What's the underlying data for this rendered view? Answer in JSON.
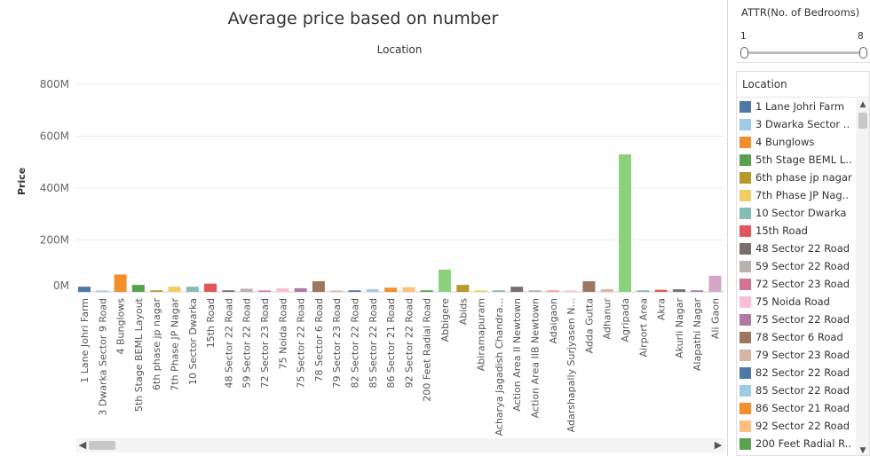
{
  "chart_data": {
    "type": "bar",
    "title": "Average price based on number",
    "column_header": "Location",
    "xlabel": "",
    "ylabel": "Price",
    "ylim": [
      0,
      900000000
    ],
    "y_ticks": [
      {
        "value": 0,
        "label": "0M"
      },
      {
        "value": 200000000,
        "label": "200M"
      },
      {
        "value": 400000000,
        "label": "400M"
      },
      {
        "value": 600000000,
        "label": "600M"
      },
      {
        "value": 800000000,
        "label": "800M"
      }
    ],
    "grid": true,
    "categories": [
      "1 Lane Johri Farm",
      "3 Dwarka Sector 9 Road",
      "4 Bunglows",
      "5th Stage BEML Layout",
      "6th phase jp nagar",
      "7th Phase JP Nagar",
      "10 Sector Dwarka",
      "15th Road",
      "48 Sector 22 Road",
      "59 Sector 22 Road",
      "72 Sector 23 Road",
      "75 Noida Road",
      "75 Sector 22 Road",
      "78 Sector 6 Road",
      "79 Sector 23 Road",
      "82 Sector 22 Road",
      "85 Sector 22 Road",
      "86 Sector 21 Road",
      "92 Sector 22 Road",
      "200 Feet Radial Road",
      "Abbigere",
      "Abids",
      "Abiramapuram",
      "Acharya Jagadish Chandra...",
      "Action Area II Newtown",
      "Action Area IIB Newtown",
      "Adaigaon",
      "Adarshapally Surjyasen N...",
      "Adda Gutta",
      "Adhanur",
      "Agripada",
      "Airport Area",
      "Akra",
      "Akurli Nagar",
      "Alapathi Nagar",
      "Ali Gaon",
      ""
    ],
    "values": [
      20000000,
      4000000,
      67000000,
      27000000,
      6000000,
      20000000,
      20000000,
      32000000,
      6000000,
      12000000,
      3000000,
      14000000,
      14000000,
      41000000,
      4000000,
      6000000,
      10000000,
      16000000,
      18000000,
      6000000,
      86000000,
      27000000,
      6000000,
      6000000,
      20000000,
      6000000,
      6000000,
      3000000,
      41000000,
      10000000,
      530000000,
      6000000,
      8000000,
      10000000,
      6000000,
      62000000,
      6000000
    ],
    "colors": [
      "#4e79a7",
      "#a0cbe8",
      "#f28e2b",
      "#59a14f",
      "#b6992d",
      "#f1ce63",
      "#86bcb6",
      "#e15759",
      "#79706e",
      "#bab0ac",
      "#d37295",
      "#fabfd2",
      "#b07aa1",
      "#9d7660",
      "#d7b5a6",
      "#4e79a7",
      "#a0cbe8",
      "#f28e2b",
      "#ffbe7d",
      "#59a14f",
      "#8cd17d",
      "#b6992d",
      "#f1ce63",
      "#86bcb6",
      "#79706e",
      "#bab0ac",
      "#ff9d9a",
      "#fabfd2",
      "#9d7660",
      "#d7b5a6",
      "#8cd17d",
      "#86bcb6",
      "#e15759",
      "#79706e",
      "#b07aa1",
      "#d4a6c8",
      "#9d7660"
    ]
  },
  "filter": {
    "title": "ATTR(No. of Bedrooms)",
    "min_label": "1",
    "max_label": "8"
  },
  "legend": {
    "title": "Location",
    "items": [
      {
        "label": "1 Lane Johri Farm",
        "color": "#4e79a7"
      },
      {
        "label": "3 Dwarka Sector ..",
        "color": "#a0cbe8"
      },
      {
        "label": "4 Bunglows",
        "color": "#f28e2b"
      },
      {
        "label": "5th Stage BEML L..",
        "color": "#59a14f"
      },
      {
        "label": "6th phase jp nagar",
        "color": "#b6992d"
      },
      {
        "label": "7th Phase JP Nag..",
        "color": "#f1ce63"
      },
      {
        "label": "10 Sector Dwarka",
        "color": "#86bcb6"
      },
      {
        "label": "15th Road",
        "color": "#e15759"
      },
      {
        "label": "48 Sector 22 Road",
        "color": "#79706e"
      },
      {
        "label": "59 Sector 22 Road",
        "color": "#bab0ac"
      },
      {
        "label": "72 Sector 23 Road",
        "color": "#d37295"
      },
      {
        "label": "75 Noida Road",
        "color": "#fabfd2"
      },
      {
        "label": "75 Sector 22 Road",
        "color": "#b07aa1"
      },
      {
        "label": "78 Sector 6 Road",
        "color": "#9d7660"
      },
      {
        "label": "79 Sector 23 Road",
        "color": "#d7b5a6"
      },
      {
        "label": "82 Sector 22 Road",
        "color": "#4e79a7"
      },
      {
        "label": "85 Sector 22 Road",
        "color": "#a0cbe8"
      },
      {
        "label": "86 Sector 21 Road",
        "color": "#f28e2b"
      },
      {
        "label": "92 Sector 22 Road",
        "color": "#ffbe7d"
      },
      {
        "label": "200 Feet Radial R..",
        "color": "#59a14f"
      },
      {
        "label": "",
        "color": "#8cd17d"
      }
    ]
  }
}
